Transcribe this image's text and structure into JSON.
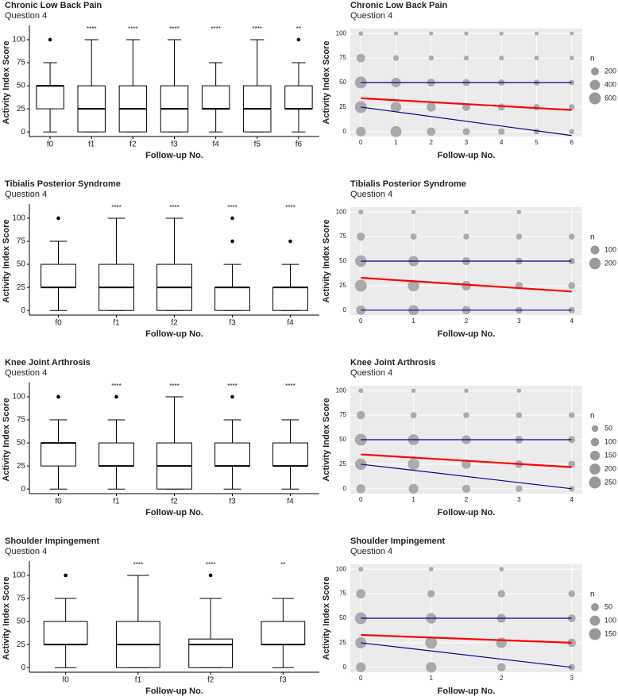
{
  "chart_data": [
    {
      "type": "box",
      "title": "Chronic Low Back Pain",
      "subtitle": "Question 4",
      "xlabel": "Follow-up No.",
      "ylabel": "Activity Index Score",
      "categories": [
        "f0",
        "f1",
        "f2",
        "f3",
        "f4",
        "f5",
        "f6"
      ],
      "min": [
        0,
        0,
        0,
        0,
        0,
        0,
        0
      ],
      "q1": [
        25,
        0,
        0,
        0,
        25,
        0,
        25
      ],
      "median": [
        50,
        25,
        25,
        25,
        25,
        25,
        25
      ],
      "q3": [
        50,
        50,
        50,
        50,
        50,
        50,
        50
      ],
      "max": [
        75,
        100,
        100,
        100,
        75,
        100,
        75
      ],
      "outliers": [
        [
          100
        ],
        [],
        [],
        [],
        [],
        [],
        [
          100
        ]
      ],
      "significance": [
        null,
        "****",
        "****",
        "****",
        "****",
        "****",
        "**"
      ],
      "ylim": [
        -5,
        112
      ],
      "yticks": [
        0,
        25,
        50,
        75,
        100
      ]
    },
    {
      "type": "bubble",
      "title": "Chronic Low Back Pain",
      "subtitle": "Question 4",
      "xlabel": "Follow-up No.",
      "ylabel": "Activity Index Score",
      "x": [
        0,
        1,
        2,
        3,
        4,
        5,
        6,
        0,
        1,
        2,
        3,
        4,
        5,
        6,
        0,
        1,
        2,
        3,
        4,
        5,
        6,
        0,
        1,
        2,
        3,
        4,
        5,
        6,
        0,
        1,
        2,
        3,
        4,
        5,
        6
      ],
      "y": [
        100,
        100,
        100,
        100,
        100,
        100,
        100,
        75,
        75,
        75,
        75,
        75,
        75,
        75,
        50,
        50,
        50,
        50,
        50,
        50,
        50,
        25,
        25,
        25,
        25,
        25,
        25,
        25,
        0,
        0,
        0,
        0,
        0,
        0,
        0
      ],
      "n": [
        30,
        20,
        20,
        20,
        20,
        15,
        15,
        250,
        70,
        50,
        45,
        40,
        35,
        30,
        600,
        350,
        200,
        150,
        100,
        80,
        60,
        600,
        450,
        300,
        200,
        150,
        100,
        80,
        350,
        500,
        250,
        150,
        120,
        80,
        50
      ],
      "point_color": "#999999",
      "lines": [
        {
          "color": "#00008b",
          "x": [
            0,
            6
          ],
          "y": [
            50,
            50
          ]
        },
        {
          "color": "#ff0000",
          "x": [
            0,
            6
          ],
          "y": [
            34,
            22
          ]
        },
        {
          "color": "#00008b",
          "x": [
            0,
            6
          ],
          "y": [
            25,
            -4
          ]
        }
      ],
      "legend_title": "n",
      "size_legend": [
        200,
        400,
        600
      ],
      "xlim": [
        -0.3,
        6.3
      ],
      "xticks": [
        0,
        1,
        2,
        3,
        4,
        5,
        6
      ],
      "ylim": [
        -5,
        105
      ],
      "yticks": [
        0,
        25,
        50,
        75,
        100
      ],
      "grid": true
    },
    {
      "type": "box",
      "title": "Tibialis Posterior Syndrome",
      "subtitle": "Question 4",
      "xlabel": "Follow-up No.",
      "ylabel": "Activity Index Score",
      "categories": [
        "f0",
        "f1",
        "f2",
        "f3",
        "f4"
      ],
      "min": [
        0,
        0,
        0,
        0,
        0
      ],
      "q1": [
        25,
        0,
        0,
        0,
        0
      ],
      "median": [
        25,
        25,
        25,
        25,
        25
      ],
      "q3": [
        50,
        50,
        50,
        25,
        25
      ],
      "max": [
        75,
        100,
        100,
        50,
        50
      ],
      "outliers": [
        [
          100
        ],
        [],
        [],
        [
          75,
          100
        ],
        [
          75
        ]
      ],
      "significance": [
        null,
        "****",
        "****",
        "****",
        "****"
      ],
      "ylim": [
        -5,
        112
      ],
      "yticks": [
        0,
        25,
        50,
        75,
        100
      ]
    },
    {
      "type": "bubble",
      "title": "Tibialis Posterior Syndrome",
      "subtitle": "Question 4",
      "xlabel": "Follow-up No.",
      "ylabel": "Activity Index Score",
      "x": [
        0,
        1,
        2,
        3,
        0,
        1,
        2,
        3,
        4,
        0,
        1,
        2,
        3,
        4,
        0,
        1,
        2,
        3,
        4,
        0,
        1,
        2,
        3,
        4
      ],
      "y": [
        100,
        100,
        100,
        100,
        75,
        75,
        75,
        75,
        75,
        50,
        50,
        50,
        50,
        50,
        25,
        25,
        25,
        25,
        25,
        0,
        0,
        0,
        0,
        0
      ],
      "n": [
        15,
        10,
        10,
        10,
        80,
        35,
        30,
        30,
        30,
        200,
        150,
        80,
        50,
        40,
        220,
        200,
        120,
        60,
        50,
        120,
        150,
        90,
        50,
        40
      ],
      "point_color": "#999999",
      "lines": [
        {
          "color": "#00008b",
          "x": [
            0,
            4
          ],
          "y": [
            50,
            50
          ]
        },
        {
          "color": "#ff0000",
          "x": [
            0,
            4
          ],
          "y": [
            33,
            19
          ]
        },
        {
          "color": "#00008b",
          "x": [
            0,
            4
          ],
          "y": [
            0,
            0
          ]
        }
      ],
      "legend_title": "n",
      "size_legend": [
        100,
        200
      ],
      "xlim": [
        -0.2,
        4.2
      ],
      "xticks": [
        0,
        1,
        2,
        3,
        4
      ],
      "ylim": [
        -5,
        105
      ],
      "yticks": [
        0,
        25,
        50,
        75,
        100
      ],
      "grid": true
    },
    {
      "type": "box",
      "title": "Knee Joint Arthrosis",
      "subtitle": "Question 4",
      "xlabel": "Follow-up No.",
      "ylabel": "Activity Index Score",
      "categories": [
        "f0",
        "f1",
        "f2",
        "f3",
        "f4"
      ],
      "min": [
        0,
        0,
        0,
        0,
        0
      ],
      "q1": [
        25,
        25,
        0,
        25,
        25
      ],
      "median": [
        50,
        25,
        25,
        25,
        25
      ],
      "q3": [
        50,
        50,
        50,
        50,
        50
      ],
      "max": [
        75,
        75,
        100,
        75,
        75
      ],
      "outliers": [
        [
          100
        ],
        [
          100
        ],
        [],
        [
          100
        ],
        []
      ],
      "significance": [
        null,
        "****",
        "****",
        "****",
        "****"
      ],
      "ylim": [
        -5,
        112
      ],
      "yticks": [
        0,
        25,
        50,
        75,
        100
      ]
    },
    {
      "type": "bubble",
      "title": "Knee Joint Arthrosis",
      "subtitle": "Question 4",
      "xlabel": "Follow-up No.",
      "ylabel": "Activity Index Score",
      "x": [
        0,
        1,
        2,
        3,
        0,
        1,
        2,
        3,
        4,
        0,
        1,
        2,
        3,
        4,
        0,
        1,
        2,
        3,
        4,
        0,
        1,
        2,
        3,
        4
      ],
      "y": [
        100,
        100,
        100,
        100,
        75,
        75,
        75,
        75,
        75,
        50,
        50,
        50,
        50,
        50,
        25,
        25,
        25,
        25,
        25,
        0,
        0,
        0,
        0,
        0
      ],
      "n": [
        15,
        10,
        10,
        10,
        100,
        40,
        35,
        35,
        35,
        250,
        200,
        120,
        80,
        60,
        230,
        230,
        130,
        80,
        60,
        120,
        150,
        90,
        50,
        30
      ],
      "point_color": "#999999",
      "lines": [
        {
          "color": "#00008b",
          "x": [
            0,
            4
          ],
          "y": [
            50,
            50
          ]
        },
        {
          "color": "#ff0000",
          "x": [
            0,
            4
          ],
          "y": [
            35,
            22
          ]
        },
        {
          "color": "#00008b",
          "x": [
            0,
            4
          ],
          "y": [
            25,
            0
          ]
        }
      ],
      "legend_title": "n",
      "size_legend": [
        50,
        100,
        150,
        200,
        250
      ],
      "xlim": [
        -0.2,
        4.2
      ],
      "xticks": [
        0,
        1,
        2,
        3,
        4
      ],
      "ylim": [
        -5,
        105
      ],
      "yticks": [
        0,
        25,
        50,
        75,
        100
      ],
      "grid": true
    },
    {
      "type": "box",
      "title": "Shoulder Impingement",
      "subtitle": "Question 4",
      "xlabel": "Follow-up No.",
      "ylabel": "Activity Index Score",
      "categories": [
        "f0",
        "f1",
        "f2",
        "f3"
      ],
      "min": [
        0,
        0,
        0,
        0
      ],
      "q1": [
        25,
        0,
        0,
        25
      ],
      "median": [
        25,
        25,
        25,
        25
      ],
      "q3": [
        50,
        50,
        31,
        50
      ],
      "max": [
        75,
        100,
        75,
        75
      ],
      "outliers": [
        [
          100
        ],
        [],
        [
          100
        ],
        []
      ],
      "significance": [
        null,
        "****",
        "****",
        "**"
      ],
      "ylim": [
        -5,
        112
      ],
      "yticks": [
        0,
        25,
        50,
        75,
        100
      ]
    },
    {
      "type": "bubble",
      "title": "Shoulder Impingement",
      "subtitle": "Question 4",
      "xlabel": "Follow-up No.",
      "ylabel": "Activity Index Score",
      "x": [
        0,
        1,
        2,
        0,
        1,
        2,
        3,
        0,
        1,
        2,
        3,
        0,
        1,
        2,
        3,
        0,
        1,
        2,
        3
      ],
      "y": [
        100,
        100,
        100,
        75,
        75,
        75,
        75,
        50,
        50,
        50,
        50,
        25,
        25,
        25,
        25,
        0,
        0,
        0,
        0
      ],
      "n": [
        10,
        8,
        8,
        80,
        40,
        40,
        30,
        150,
        110,
        70,
        50,
        130,
        150,
        110,
        60,
        90,
        110,
        60,
        30
      ],
      "point_color": "#999999",
      "lines": [
        {
          "color": "#00008b",
          "x": [
            0,
            3
          ],
          "y": [
            50,
            50
          ]
        },
        {
          "color": "#ff0000",
          "x": [
            0,
            3
          ],
          "y": [
            33,
            25
          ]
        },
        {
          "color": "#00008b",
          "x": [
            0,
            3
          ],
          "y": [
            25,
            0
          ]
        }
      ],
      "legend_title": "n",
      "size_legend": [
        50,
        100,
        150
      ],
      "xlim": [
        -0.15,
        3.15
      ],
      "xticks": [
        0,
        1,
        2,
        3
      ],
      "ylim": [
        -5,
        105
      ],
      "yticks": [
        0,
        25,
        50,
        75,
        100
      ],
      "grid": true
    }
  ]
}
